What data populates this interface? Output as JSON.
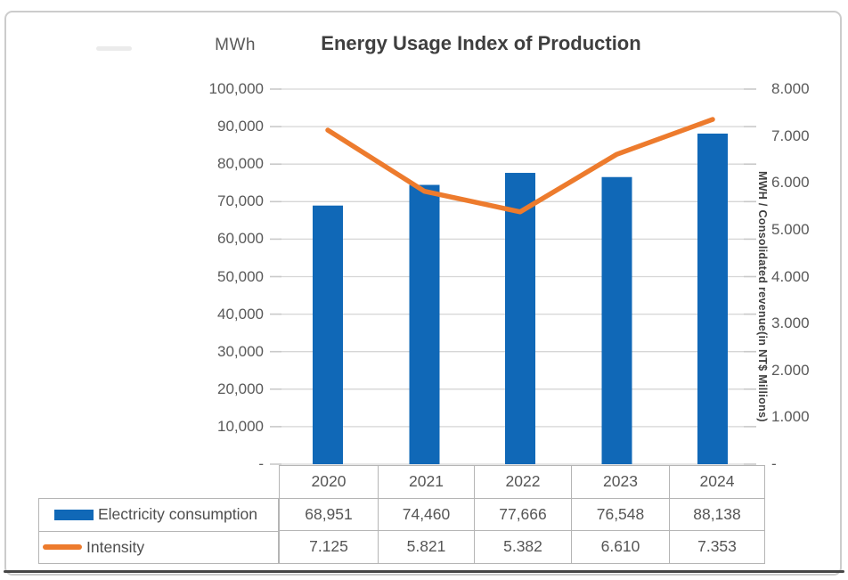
{
  "chart_data": {
    "type": "combo",
    "title": "Energy Usage Index of Production",
    "categories": [
      "2020",
      "2021",
      "2022",
      "2023",
      "2024"
    ],
    "series": [
      {
        "name": "Electricity consumption",
        "type": "bar",
        "axis": "left",
        "color": "#1068b7",
        "values": [
          68951,
          74460,
          77666,
          76548,
          88138
        ],
        "value_labels": [
          "68,951",
          "74,460",
          "77,666",
          "76,548",
          "88,138"
        ]
      },
      {
        "name": "Intensity",
        "type": "line",
        "axis": "right",
        "color": "#ed7b2d",
        "values": [
          7.125,
          5.821,
          5.382,
          6.61,
          7.353
        ],
        "value_labels": [
          "7.125",
          "5.821",
          "5.382",
          "6.610",
          "7.353"
        ]
      }
    ],
    "left_axis": {
      "unit_label": "MWh",
      "min": 0,
      "max": 100000,
      "tick_labels": [
        "100,000",
        "90,000",
        "80,000",
        "70,000",
        "60,000",
        "50,000",
        "40,000",
        "30,000",
        "20,000",
        "10,000",
        "-"
      ]
    },
    "right_axis": {
      "title": "MWH / Consolidated revenue(in NT$ Millions)",
      "min": 0,
      "max": 8,
      "tick_labels": [
        "8.000",
        "7.000",
        "6.000",
        "5.000",
        "4.000",
        "3.000",
        "2.000",
        "1.000",
        "-"
      ]
    },
    "gridlines": true,
    "legend_position": "bottom-table"
  },
  "colors": {
    "bar": "#1068b7",
    "line": "#ed7b2d",
    "grid": "#d6d6d6",
    "tick": "#c9c9c9",
    "axis_text": "#595959",
    "title_text": "#3f3f3f",
    "table_border": "#b5b5b5",
    "frame_border": "#cccccc",
    "bottom_rule": "#474747"
  }
}
